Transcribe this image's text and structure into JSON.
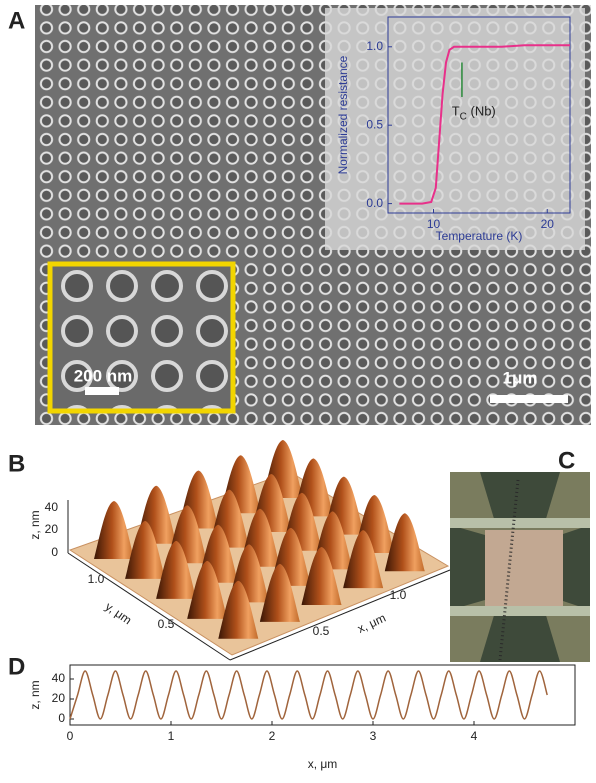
{
  "panels": {
    "a": "A",
    "b": "B",
    "c": "C",
    "d": "D"
  },
  "scale_bars": {
    "small": "200 nm",
    "large": "1μm"
  },
  "panel_b": {
    "z_label": "z, nm",
    "z_ticks": [
      "0",
      "20",
      "40"
    ],
    "y_label": "y, μm",
    "y_ticks": [
      "1.0",
      "0.5"
    ],
    "x_label": "x, μm",
    "x_ticks": [
      "0.5",
      "1.0"
    ]
  },
  "chart_data": [
    {
      "type": "line",
      "x_label": "Temperature (K)",
      "y_label": "Normalized resistance",
      "annotation": {
        "main": "T",
        "sub": "C",
        "rest": " (Nb)"
      },
      "x": [
        7,
        8,
        9,
        9.8,
        10.2,
        10.5,
        10.8,
        11.1,
        11.4,
        11.8,
        12.5,
        14,
        16,
        18,
        20,
        22
      ],
      "values": [
        0,
        0,
        0,
        0.01,
        0.1,
        0.4,
        0.7,
        0.9,
        0.98,
        1.0,
        1.0,
        1.0,
        1.0,
        1.01,
        1.01,
        1.01
      ],
      "color": "#e8308a",
      "xlim": [
        6,
        22
      ],
      "xticks": [
        10,
        20
      ],
      "ylim": [
        -0.06,
        1.19
      ],
      "yticks": [
        {
          "value": 0,
          "label": "0.0"
        },
        {
          "value": 0.5,
          "label": "0.5"
        },
        {
          "value": 1,
          "label": "1.0"
        }
      ]
    },
    {
      "type": "line",
      "x_label": "x, μm",
      "y_label": "z, nm",
      "x": [
        0,
        0.075,
        0.15,
        0.225,
        0.3,
        0.375,
        0.45,
        0.525,
        0.6,
        0.675,
        0.75,
        0.825,
        0.9,
        0.975,
        1.05,
        1.125,
        1.2,
        1.275,
        1.35,
        1.425,
        1.5,
        1.575,
        1.65,
        1.725,
        1.8,
        1.875,
        1.95,
        2.025,
        2.1,
        2.175,
        2.25,
        2.325,
        2.4,
        2.475,
        2.55,
        2.625,
        2.7,
        2.775,
        2.85,
        2.925,
        3,
        3.075,
        3.15,
        3.225,
        3.3,
        3.375,
        3.45,
        3.525,
        3.6,
        3.675,
        3.75,
        3.825,
        3.9,
        3.975,
        4.05,
        4.125,
        4.2,
        4.275,
        4.35,
        4.425,
        4.5,
        4.575,
        4.65,
        4.725
      ],
      "values": [
        0,
        24,
        48,
        24,
        0,
        24,
        48,
        24,
        0,
        24,
        48,
        24,
        0,
        24,
        48,
        24,
        0,
        24,
        48,
        24,
        0,
        24,
        48,
        24,
        0,
        24,
        48,
        24,
        0,
        24,
        48,
        24,
        0,
        24,
        48,
        24,
        0,
        24,
        48,
        24,
        0,
        24,
        48,
        24,
        0,
        24,
        48,
        24,
        0,
        24,
        48,
        24,
        0,
        24,
        48,
        24,
        0,
        24,
        48,
        24,
        0,
        24,
        48,
        24
      ],
      "color": "#a0643c",
      "xlim": [
        0,
        5
      ],
      "xticks": [
        0,
        1,
        2,
        3,
        4
      ],
      "ylim": [
        -6,
        54
      ],
      "yticks": [
        0,
        20,
        40
      ]
    }
  ]
}
